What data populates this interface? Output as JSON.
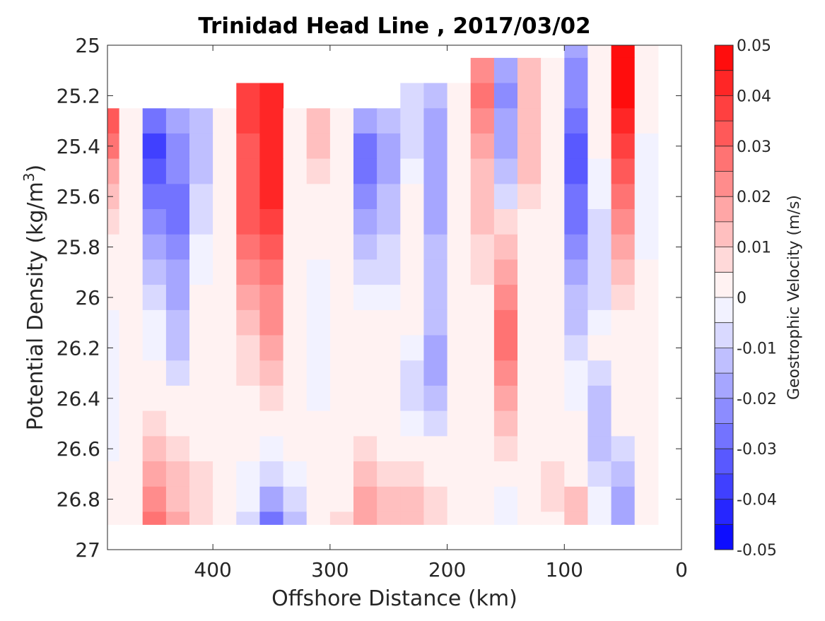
{
  "chart_data": {
    "type": "heatmap",
    "title": "Trinidad Head Line , 2017/03/02",
    "xlabel": "Offshore Distance (km)",
    "ylabel_base": "Potential Density (kg/m",
    "ylabel_sup": "3",
    "ylabel_end": ")",
    "colorbar_label": "Geostrophic Velocity (m/s)",
    "xlim": [
      490,
      0
    ],
    "ylim": [
      25,
      27
    ],
    "x_reversed": true,
    "y_reversed": true,
    "x_ticks": [
      400,
      300,
      200,
      100,
      0
    ],
    "y_ticks": [
      25,
      25.2,
      25.4,
      25.6,
      25.8,
      26,
      26.2,
      26.4,
      26.6,
      26.8,
      27
    ],
    "y_tick_labels": [
      "25",
      "25.2",
      "25.4",
      "25.6",
      "25.8",
      "26",
      "26.2",
      "26.4",
      "26.6",
      "26.8",
      "27"
    ],
    "color_levels": [
      -0.05,
      -0.045,
      -0.04,
      -0.035,
      -0.03,
      -0.025,
      -0.02,
      -0.015,
      -0.01,
      -0.005,
      0,
      0.005,
      0.01,
      0.015,
      0.02,
      0.025,
      0.03,
      0.035,
      0.04,
      0.045,
      0.05
    ],
    "colorbar_ticks": [
      0.05,
      0.04,
      0.03,
      0.02,
      0.01,
      0,
      -0.01,
      -0.02,
      -0.03,
      -0.04,
      -0.05
    ],
    "colorbar_tick_labels": [
      "0.05",
      "0.04",
      "0.03",
      "0.02",
      "0.01",
      "0",
      "-0.01",
      "-0.02",
      "-0.03",
      "-0.04",
      "-0.05"
    ],
    "colormap": {
      "negative": "#0000ff",
      "zero": "#ffffff",
      "positive": "#ff0000"
    },
    "x_stations": [
      490,
      470,
      450,
      430,
      410,
      390,
      370,
      350,
      330,
      310,
      290,
      270,
      250,
      230,
      210,
      190,
      170,
      150,
      130,
      110,
      90,
      70,
      50,
      30
    ],
    "y_levels": [
      25.0,
      25.1,
      25.2,
      25.3,
      25.4,
      25.5,
      25.6,
      25.7,
      25.8,
      25.9,
      26.0,
      26.1,
      26.2,
      26.3,
      26.4,
      26.5,
      26.6,
      26.7,
      26.8,
      26.9
    ],
    "top_density_by_station": [
      25.3,
      25.3,
      25.3,
      25.3,
      25.3,
      25.3,
      25.2,
      25.2,
      25.3,
      25.3,
      25.3,
      25.3,
      25.3,
      25.2,
      25.2,
      25.2,
      25.1,
      25.1,
      25.1,
      25.1,
      25.0,
      25.0,
      25.0,
      25.0
    ],
    "bottom_density": 26.9,
    "velocity": [
      [
        null,
        null,
        null,
        null,
        null,
        null,
        null,
        null,
        null,
        null,
        null,
        null,
        null,
        null,
        null,
        null,
        null,
        null,
        null,
        null,
        -0.02,
        0.0,
        0.045,
        0.0
      ],
      [
        null,
        null,
        null,
        null,
        null,
        null,
        null,
        null,
        null,
        null,
        null,
        null,
        null,
        null,
        null,
        null,
        0.02,
        -0.02,
        0.01,
        0.0,
        -0.025,
        0.0,
        0.05,
        0.0
      ],
      [
        null,
        null,
        null,
        null,
        null,
        null,
        0.035,
        0.04,
        null,
        null,
        null,
        null,
        null,
        -0.01,
        -0.015,
        0.0,
        0.025,
        -0.025,
        0.01,
        0.0,
        -0.025,
        0.0,
        0.045,
        0.0
      ],
      [
        0.03,
        0.0,
        -0.03,
        -0.02,
        -0.015,
        0.0,
        0.035,
        0.04,
        0.0,
        0.01,
        0.0,
        -0.02,
        -0.015,
        -0.01,
        -0.02,
        0.0,
        0.02,
        -0.02,
        0.01,
        0.0,
        -0.03,
        0.0,
        0.04,
        0.0
      ],
      [
        0.025,
        0.0,
        -0.04,
        -0.025,
        -0.015,
        0.0,
        0.03,
        0.04,
        0.0,
        0.01,
        0.0,
        -0.03,
        -0.02,
        -0.01,
        -0.02,
        0.0,
        0.015,
        -0.02,
        0.01,
        0.0,
        -0.035,
        0.0,
        0.035,
        -0.005
      ],
      [
        0.015,
        0.0,
        -0.035,
        -0.025,
        -0.015,
        0.0,
        0.03,
        0.04,
        0.0,
        0.005,
        0.0,
        -0.03,
        -0.02,
        -0.005,
        -0.02,
        0.0,
        0.01,
        -0.015,
        0.01,
        0.0,
        -0.035,
        -0.005,
        0.03,
        -0.005
      ],
      [
        0.01,
        0.0,
        -0.03,
        -0.03,
        -0.01,
        0.0,
        0.03,
        0.04,
        0.0,
        0.0,
        0.0,
        -0.025,
        -0.015,
        0.0,
        -0.02,
        0.0,
        0.01,
        -0.01,
        0.005,
        0.0,
        -0.03,
        -0.005,
        0.025,
        -0.005
      ],
      [
        0.005,
        0.0,
        -0.025,
        -0.03,
        -0.01,
        0.0,
        0.03,
        0.035,
        0.0,
        0.0,
        0.0,
        -0.02,
        -0.015,
        0.0,
        -0.02,
        0.0,
        0.01,
        0.005,
        0.0,
        0.0,
        -0.03,
        -0.01,
        0.02,
        -0.005
      ],
      [
        0.0,
        0.0,
        -0.02,
        -0.025,
        -0.005,
        0.0,
        0.025,
        0.03,
        0.0,
        0.0,
        0.0,
        -0.015,
        -0.01,
        0.0,
        -0.015,
        0.0,
        0.005,
        0.01,
        0.0,
        0.0,
        -0.025,
        -0.01,
        0.015,
        -0.005
      ],
      [
        0.0,
        0.0,
        -0.015,
        -0.02,
        -0.005,
        0.0,
        0.02,
        0.025,
        0.0,
        -0.005,
        0.0,
        -0.01,
        -0.01,
        0.0,
        -0.015,
        0.0,
        0.005,
        0.015,
        0.0,
        0.0,
        -0.02,
        -0.01,
        0.01,
        0.0
      ],
      [
        0.0,
        0.0,
        -0.01,
        -0.02,
        0.0,
        0.0,
        0.015,
        0.02,
        0.0,
        -0.005,
        0.0,
        -0.005,
        -0.005,
        0.0,
        -0.015,
        0.0,
        0.0,
        0.02,
        0.0,
        0.0,
        -0.015,
        -0.01,
        0.005,
        0.0
      ],
      [
        -0.005,
        0.0,
        -0.005,
        -0.015,
        0.0,
        0.0,
        0.01,
        0.02,
        0.0,
        -0.005,
        0.0,
        0.0,
        0.0,
        0.0,
        -0.015,
        0.0,
        0.0,
        0.025,
        0.0,
        0.0,
        -0.015,
        -0.005,
        0.0,
        0.0
      ],
      [
        -0.005,
        0.0,
        -0.005,
        -0.015,
        0.0,
        0.0,
        0.005,
        0.015,
        0.0,
        -0.005,
        0.0,
        0.0,
        0.0,
        -0.005,
        -0.02,
        0.0,
        0.0,
        0.025,
        0.0,
        0.0,
        -0.01,
        0.0,
        0.0,
        0.0
      ],
      [
        -0.005,
        0.0,
        0.0,
        -0.01,
        0.0,
        0.0,
        0.005,
        0.01,
        0.0,
        -0.005,
        0.0,
        0.0,
        0.0,
        -0.01,
        -0.02,
        0.0,
        0.0,
        0.02,
        0.0,
        0.0,
        -0.005,
        -0.01,
        0.0,
        0.0
      ],
      [
        -0.005,
        0.0,
        0.0,
        0.0,
        0.0,
        0.0,
        0.0,
        0.005,
        0.0,
        -0.005,
        0.0,
        0.0,
        0.0,
        -0.01,
        -0.015,
        0.0,
        0.0,
        0.015,
        0.0,
        0.0,
        -0.005,
        -0.015,
        0.0,
        0.0
      ],
      [
        -0.005,
        0.0,
        0.005,
        0.0,
        0.0,
        0.0,
        0.0,
        0.0,
        0.0,
        0.0,
        0.0,
        0.0,
        0.0,
        -0.005,
        -0.01,
        0.0,
        0.0,
        0.01,
        0.0,
        0.0,
        0.0,
        -0.015,
        0.0,
        0.0
      ],
      [
        -0.005,
        0.0,
        0.01,
        0.005,
        0.0,
        0.0,
        0.0,
        -0.005,
        0.0,
        0.0,
        0.0,
        0.005,
        0.0,
        0.0,
        0.0,
        0.0,
        0.0,
        0.005,
        0.0,
        0.0,
        0.0,
        -0.015,
        -0.01,
        0.0
      ],
      [
        0.0,
        0.0,
        0.015,
        0.01,
        0.005,
        0.0,
        -0.005,
        -0.01,
        -0.005,
        0.0,
        0.0,
        0.01,
        0.005,
        0.005,
        0.0,
        0.0,
        0.0,
        0.0,
        0.0,
        0.005,
        0.0,
        -0.01,
        -0.015,
        0.0
      ],
      [
        0.0,
        0.0,
        0.02,
        0.01,
        0.005,
        0.0,
        -0.005,
        -0.02,
        -0.01,
        0.0,
        0.0,
        0.015,
        0.01,
        0.01,
        0.005,
        0.0,
        0.0,
        -0.005,
        0.0,
        0.005,
        0.01,
        -0.005,
        -0.02,
        0.0
      ],
      [
        0.0,
        0.0,
        0.025,
        0.015,
        0.005,
        0.0,
        -0.01,
        -0.03,
        -0.015,
        0.0,
        0.005,
        0.015,
        0.01,
        0.01,
        0.005,
        0.0,
        0.0,
        -0.005,
        0.0,
        0.0,
        0.01,
        -0.005,
        -0.02,
        0.0
      ]
    ]
  }
}
